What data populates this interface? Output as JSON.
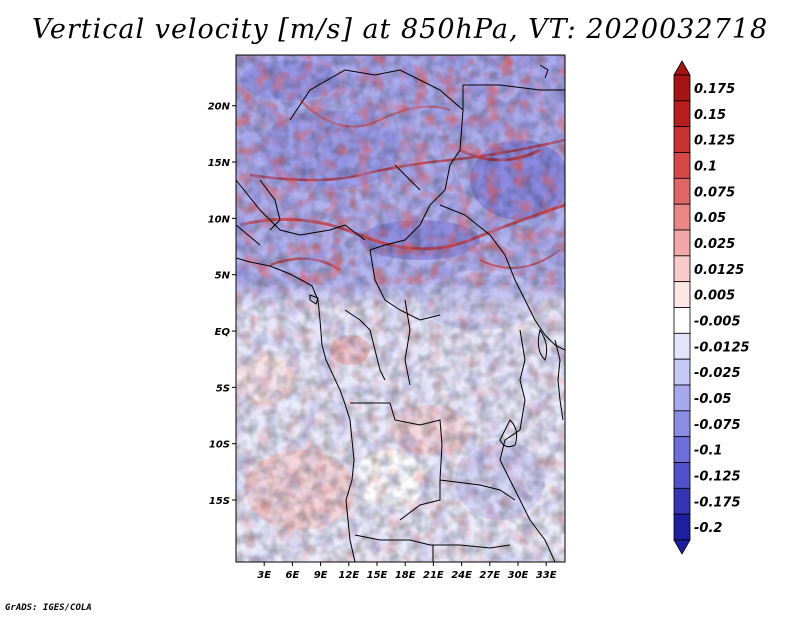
{
  "title": "Vertical velocity [m/s] at 850hPa, VT: 2020032718",
  "credit": "GrADS: IGES/COLA",
  "map": {
    "lat_range": [
      -20.5,
      24.5
    ],
    "lon_range": [
      0,
      35
    ],
    "y_ticks": [
      {
        "label": "20N",
        "value": 20
      },
      {
        "label": "15N",
        "value": 15
      },
      {
        "label": "10N",
        "value": 10
      },
      {
        "label": "5N",
        "value": 5
      },
      {
        "label": "EQ",
        "value": 0
      },
      {
        "label": "5S",
        "value": -5
      },
      {
        "label": "10S",
        "value": -10
      },
      {
        "label": "15S",
        "value": -15
      }
    ],
    "x_ticks": [
      {
        "label": "3E",
        "value": 3
      },
      {
        "label": "6E",
        "value": 6
      },
      {
        "label": "9E",
        "value": 9
      },
      {
        "label": "12E",
        "value": 12
      },
      {
        "label": "15E",
        "value": 15
      },
      {
        "label": "18E",
        "value": 18
      },
      {
        "label": "21E",
        "value": 21
      },
      {
        "label": "24E",
        "value": 24
      },
      {
        "label": "27E",
        "value": 27
      },
      {
        "label": "30E",
        "value": 30
      },
      {
        "label": "33E",
        "value": 33
      }
    ]
  },
  "colorbar": {
    "levels": [
      {
        "label": "0.175",
        "color": "#a51515"
      },
      {
        "label": "0.15",
        "color": "#b71f1f"
      },
      {
        "label": "0.125",
        "color": "#c83232"
      },
      {
        "label": "0.1",
        "color": "#d64848"
      },
      {
        "label": "0.075",
        "color": "#e06565"
      },
      {
        "label": "0.05",
        "color": "#ea8686"
      },
      {
        "label": "0.025",
        "color": "#f2a8a8"
      },
      {
        "label": "0.0125",
        "color": "#f8caca"
      },
      {
        "label": "0.005",
        "color": "#fde6e6"
      },
      {
        "label": "-0.005",
        "color": "#ffffff"
      },
      {
        "label": "-0.0125",
        "color": "#e4e4fa"
      },
      {
        "label": "-0.025",
        "color": "#c8c8f4"
      },
      {
        "label": "-0.05",
        "color": "#a8a8ec"
      },
      {
        "label": "-0.075",
        "color": "#8c8ce4"
      },
      {
        "label": "-0.1",
        "color": "#6e6ed8"
      },
      {
        "label": "-0.125",
        "color": "#5050c8"
      },
      {
        "label": "-0.175",
        "color": "#3535b4"
      },
      {
        "label": "-0.2",
        "color": "#1e1ea0"
      }
    ],
    "top_color": "#a51515",
    "bottom_color": "#1e1ea0"
  }
}
